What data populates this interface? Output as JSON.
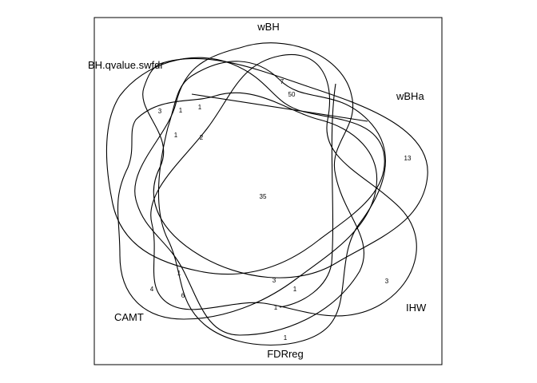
{
  "diagram": {
    "type": "venn",
    "set_count": 6,
    "sets": [
      {
        "id": "wBH",
        "label": "wBH"
      },
      {
        "id": "BH.qvalue.swfdr",
        "label": "BH.qvalue.swfdr"
      },
      {
        "id": "wBHa",
        "label": "wBHa"
      },
      {
        "id": "IHW",
        "label": "IHW"
      },
      {
        "id": "FDRreg",
        "label": "FDRreg"
      },
      {
        "id": "CAMT",
        "label": "CAMT"
      }
    ],
    "region_counts": [
      "35",
      "7",
      "50",
      "3",
      "1",
      "1",
      "1",
      "2",
      "13",
      "3",
      "1",
      "3",
      "1",
      "1",
      "4",
      "6",
      "1"
    ]
  }
}
